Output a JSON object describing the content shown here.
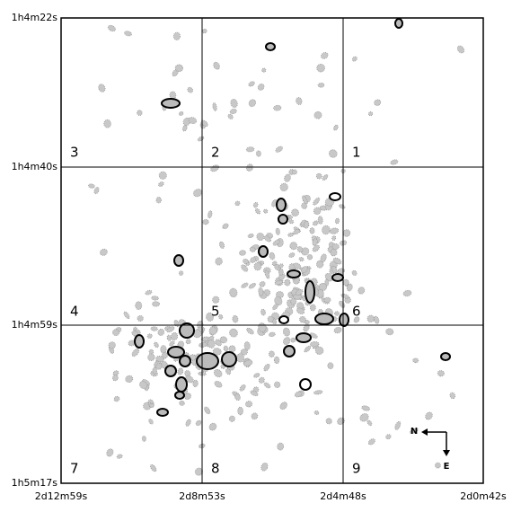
{
  "axes": {
    "y_labels": [
      "1h4m22s",
      "1h4m40s",
      "1h4m59s",
      "1h5m17s"
    ],
    "x_labels": [
      "2d12m59s",
      "2d8m53s",
      "2d4m48s",
      "2d0m42s"
    ]
  },
  "grid_cells": [
    "3",
    "2",
    "1",
    "4",
    "5",
    "6",
    "7",
    "8",
    "9"
  ],
  "compass": {
    "north": "N",
    "east": "E"
  }
}
